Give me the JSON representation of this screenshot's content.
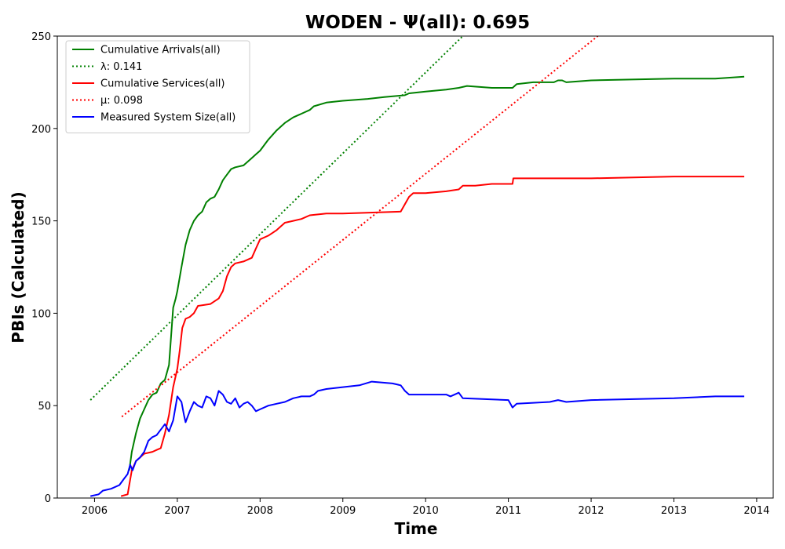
{
  "chart_data": {
    "type": "line",
    "title": "WODEN -  Ψ(all): 0.695",
    "xlabel": "Time",
    "ylabel": "PBIs (Calculated)",
    "xlim": [
      2005.55,
      2014.2
    ],
    "ylim": [
      0,
      250
    ],
    "x_ticks": [
      2006,
      2007,
      2008,
      2009,
      2010,
      2011,
      2012,
      2013,
      2014
    ],
    "x_tick_labels": [
      "2006",
      "2007",
      "2008",
      "2009",
      "2010",
      "2011",
      "2012",
      "2013",
      "2014"
    ],
    "y_ticks": [
      0,
      50,
      100,
      150,
      200,
      250
    ],
    "y_tick_labels": [
      "0",
      "50",
      "100",
      "150",
      "200",
      "250"
    ],
    "grid": false,
    "legend_position": "top-left",
    "series": [
      {
        "name": "Cumulative Arrivals(all)",
        "color": "#008000",
        "style": "solid",
        "x": [
          2006.42,
          2006.45,
          2006.5,
          2006.55,
          2006.6,
          2006.65,
          2006.7,
          2006.75,
          2006.8,
          2006.85,
          2006.9,
          2006.95,
          2006.98,
          2007.0,
          2007.05,
          2007.1,
          2007.15,
          2007.2,
          2007.25,
          2007.3,
          2007.35,
          2007.4,
          2007.45,
          2007.5,
          2007.55,
          2007.6,
          2007.65,
          2007.7,
          2007.8,
          2007.9,
          2007.95,
          2008.0,
          2008.1,
          2008.2,
          2008.3,
          2008.4,
          2008.5,
          2008.6,
          2008.65,
          2008.8,
          2009.0,
          2009.3,
          2009.5,
          2009.75,
          2009.8,
          2010.0,
          2010.25,
          2010.4,
          2010.5,
          2010.8,
          2011.05,
          2011.1,
          2011.3,
          2011.55,
          2011.6,
          2011.65,
          2011.7,
          2012.0,
          2013.0,
          2013.5,
          2013.85
        ],
        "values": [
          15,
          25,
          35,
          43,
          48,
          53,
          56,
          57,
          62,
          64,
          72,
          103,
          108,
          112,
          125,
          137,
          145,
          150,
          153,
          155,
          160,
          162,
          163,
          167,
          172,
          175,
          178,
          179,
          180,
          184,
          186,
          188,
          194,
          199,
          203,
          206,
          208,
          210,
          212,
          214,
          215,
          216,
          217,
          218,
          219,
          220,
          221,
          222,
          223,
          222,
          222,
          224,
          225,
          225,
          226,
          226,
          225,
          226,
          227,
          227,
          228
        ]
      },
      {
        "name": "λ: 0.141",
        "color": "#008000",
        "style": "dotted",
        "x": [
          2005.95,
          2010.45
        ],
        "values": [
          53,
          250
        ]
      },
      {
        "name": "Cumulative Services(all)",
        "color": "#ff0000",
        "style": "solid",
        "x": [
          2006.32,
          2006.4,
          2006.45,
          2006.5,
          2006.55,
          2006.6,
          2006.7,
          2006.75,
          2006.8,
          2006.85,
          2006.9,
          2006.95,
          2007.0,
          2007.03,
          2007.06,
          2007.1,
          2007.15,
          2007.2,
          2007.25,
          2007.4,
          2007.5,
          2007.55,
          2007.6,
          2007.65,
          2007.7,
          2007.8,
          2007.9,
          2007.95,
          2008.0,
          2008.1,
          2008.2,
          2008.3,
          2008.4,
          2008.5,
          2008.6,
          2008.8,
          2009.0,
          2009.7,
          2009.75,
          2009.8,
          2009.85,
          2010.0,
          2010.25,
          2010.4,
          2010.45,
          2010.6,
          2010.8,
          2011.05,
          2011.06,
          2011.3,
          2012.0,
          2013.0,
          2013.85
        ],
        "values": [
          1,
          2,
          15,
          20,
          22,
          24,
          25,
          26,
          27,
          35,
          45,
          60,
          70,
          80,
          92,
          97,
          98,
          100,
          104,
          105,
          108,
          112,
          120,
          125,
          127,
          128,
          130,
          135,
          140,
          142,
          145,
          149,
          150,
          151,
          153,
          154,
          154,
          155,
          159,
          163,
          165,
          165,
          166,
          167,
          169,
          169,
          170,
          170,
          173,
          173,
          173,
          174,
          174
        ]
      },
      {
        "name": "μ: 0.098",
        "color": "#ff0000",
        "style": "dotted",
        "x": [
          2006.33,
          2012.08
        ],
        "values": [
          44,
          250
        ]
      },
      {
        "name": "Measured System Size(all)",
        "color": "#0000ff",
        "style": "solid",
        "x": [
          2005.95,
          2006.05,
          2006.1,
          2006.2,
          2006.3,
          2006.35,
          2006.4,
          2006.43,
          2006.46,
          2006.5,
          2006.55,
          2006.6,
          2006.65,
          2006.7,
          2006.75,
          2006.8,
          2006.85,
          2006.9,
          2006.95,
          2007.0,
          2007.05,
          2007.08,
          2007.1,
          2007.15,
          2007.2,
          2007.25,
          2007.3,
          2007.35,
          2007.4,
          2007.45,
          2007.5,
          2007.55,
          2007.6,
          2007.65,
          2007.7,
          2007.75,
          2007.8,
          2007.85,
          2007.9,
          2007.95,
          2008.0,
          2008.1,
          2008.2,
          2008.3,
          2008.4,
          2008.5,
          2008.6,
          2008.65,
          2008.7,
          2008.8,
          2009.0,
          2009.2,
          2009.35,
          2009.6,
          2009.7,
          2009.75,
          2009.8,
          2010.0,
          2010.25,
          2010.3,
          2010.4,
          2010.45,
          2011.0,
          2011.05,
          2011.1,
          2011.5,
          2011.6,
          2011.7,
          2012.0,
          2013.0,
          2013.5,
          2013.85
        ],
        "values": [
          1,
          2,
          4,
          5,
          7,
          10,
          13,
          18,
          15,
          20,
          22,
          25,
          31,
          33,
          34,
          37,
          40,
          36,
          42,
          55,
          52,
          45,
          41,
          47,
          52,
          50,
          49,
          55,
          54,
          50,
          58,
          56,
          52,
          51,
          54,
          49,
          51,
          52,
          50,
          47,
          48,
          50,
          51,
          52,
          54,
          55,
          55,
          56,
          58,
          59,
          60,
          61,
          63,
          62,
          61,
          58,
          56,
          56,
          56,
          55,
          57,
          54,
          53,
          49,
          51,
          52,
          53,
          52,
          53,
          54,
          55,
          55
        ]
      }
    ]
  }
}
